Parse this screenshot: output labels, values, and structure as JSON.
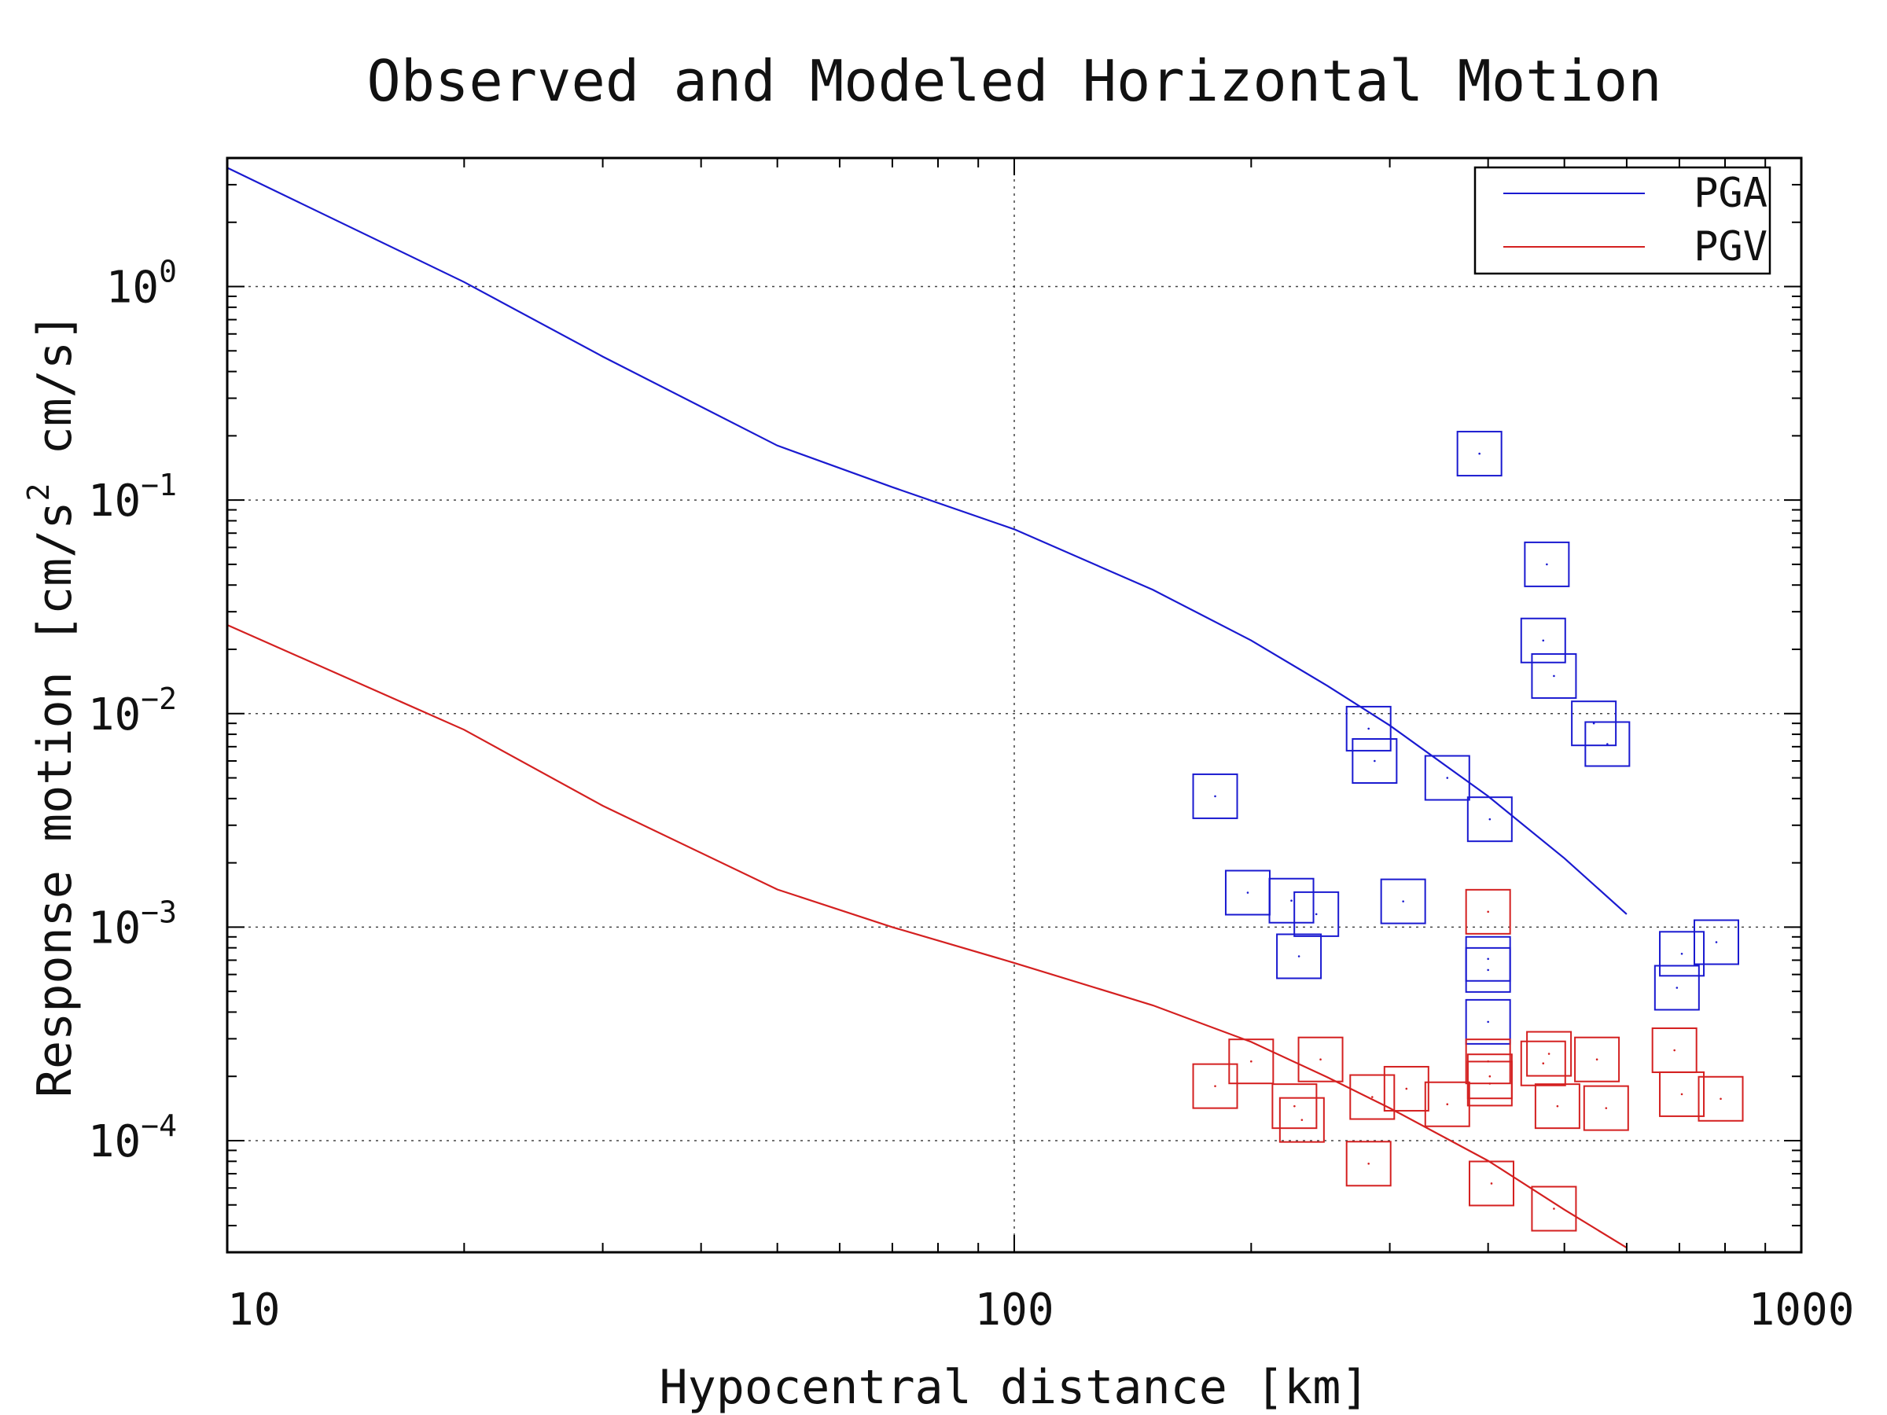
{
  "chart_data": {
    "type": "scatter",
    "title": "Observed and Modeled Horizontal Motion",
    "xlabel": "Hypocentral distance [km]",
    "ylabel": {
      "prefix": "Response motion [cm/s",
      "exponent": "2",
      "suffix": " cm/s]"
    },
    "x_scale": "log",
    "y_scale": "log",
    "xlim": [
      10,
      1000
    ],
    "ylim": [
      3e-05,
      4
    ],
    "grid": true,
    "legend": {
      "placement": "top-right"
    },
    "x_ticks": [
      {
        "value": 10,
        "label": "10"
      },
      {
        "value": 100,
        "label": "100"
      },
      {
        "value": 1000,
        "label": "1000"
      }
    ],
    "y_ticks": [
      {
        "value": 1,
        "base": "10",
        "exponent": "0"
      },
      {
        "value": 0.1,
        "base": "10",
        "exponent": "−1"
      },
      {
        "value": 0.01,
        "base": "10",
        "exponent": "−2"
      },
      {
        "value": 0.001,
        "base": "10",
        "exponent": "−3"
      },
      {
        "value": 0.0001,
        "base": "10",
        "exponent": "−4"
      }
    ],
    "series": [
      {
        "name": "PGA",
        "color": "#1a1ad0",
        "line": {
          "x": [
            10,
            20,
            30,
            50,
            70,
            100,
            150,
            200,
            250,
            300,
            400,
            500,
            600
          ],
          "y": [
            3.6,
            1.05,
            0.47,
            0.18,
            0.115,
            0.073,
            0.038,
            0.022,
            0.0135,
            0.0088,
            0.0041,
            0.0021,
            0.00115
          ]
        },
        "points": {
          "x": [
            180,
            198,
            225,
            230,
            242,
            282,
            287,
            312,
            355,
            390,
            400,
            400,
            400,
            402,
            470,
            475,
            485,
            545,
            567,
            695,
            705,
            780
          ],
          "y": [
            0.0041,
            0.00145,
            0.00133,
            0.00073,
            0.00115,
            0.0085,
            0.006,
            0.00132,
            0.005,
            0.165,
            0.00071,
            0.00063,
            0.00036,
            0.0032,
            0.022,
            0.05,
            0.015,
            0.009,
            0.0072,
            0.00052,
            0.00075,
            0.00085
          ]
        }
      },
      {
        "name": "PGV",
        "color": "#d42020",
        "line": {
          "x": [
            10,
            20,
            30,
            50,
            70,
            100,
            150,
            200,
            250,
            300,
            400,
            500,
            600
          ],
          "y": [
            0.026,
            0.0084,
            0.0037,
            0.0015,
            0.001,
            0.00068,
            0.00043,
            0.00029,
            0.000198,
            0.000142,
            8.05e-05,
            4.75e-05,
            3.15e-05
          ]
        },
        "points": {
          "x": [
            180,
            200,
            227,
            232,
            245,
            285,
            282,
            315,
            355,
            400,
            400,
            402,
            402,
            404,
            470,
            478,
            485,
            490,
            550,
            565,
            690,
            705,
            790
          ],
          "y": [
            0.00018,
            0.000235,
            0.000145,
            0.000125,
            0.00024,
            0.00016,
            7.8e-05,
            0.000175,
            0.000148,
            0.00118,
            0.000235,
            0.0002,
            0.000185,
            6.3e-05,
            0.00023,
            0.000255,
            4.8e-05,
            0.000145,
            0.00024,
            0.000142,
            0.000265,
            0.000165,
            0.000157
          ]
        }
      }
    ]
  }
}
